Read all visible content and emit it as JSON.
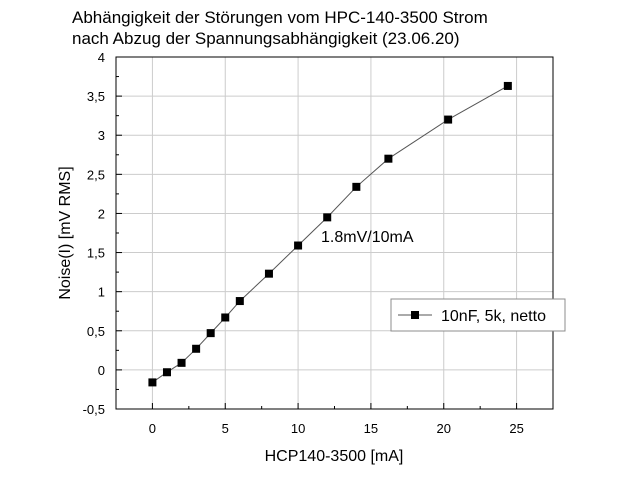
{
  "chart_data": {
    "type": "line",
    "title_lines": [
      "Abhängigkeit der Störungen vom HPC-140-3500 Strom",
      "nach Abzug der Spannungsabhängigkeit (23.06.20)"
    ],
    "xlabel": "HCP140-3500 [mA]",
    "ylabel": "Noise(I) [mV RMS]",
    "xlim": [
      -2.5,
      27.5
    ],
    "ylim": [
      -0.5,
      4
    ],
    "xticks": [
      0,
      5,
      10,
      15,
      20,
      25
    ],
    "xtick_labels": [
      "0",
      "5",
      "10",
      "15",
      "20",
      "25"
    ],
    "yticks": [
      -0.5,
      0,
      0.5,
      1,
      1.5,
      2,
      2.5,
      3,
      3.5,
      4
    ],
    "ytick_labels": [
      "-0,5",
      "0",
      "0,5",
      "1",
      "1,5",
      "2",
      "2,5",
      "3",
      "3,5",
      "4"
    ],
    "grid": true,
    "legend_position": "right",
    "annotation": "1.8mV/10mA",
    "series": [
      {
        "name": "10nF, 5k, netto",
        "color": "#000000",
        "marker": "square",
        "x": [
          0,
          1,
          2,
          3,
          4,
          5,
          6,
          8,
          10,
          12,
          14,
          16.2,
          20.3,
          24.4
        ],
        "y": [
          -0.16,
          -0.03,
          0.09,
          0.27,
          0.47,
          0.67,
          0.88,
          1.23,
          1.59,
          1.95,
          2.34,
          2.7,
          3.2,
          3.63
        ]
      }
    ]
  }
}
